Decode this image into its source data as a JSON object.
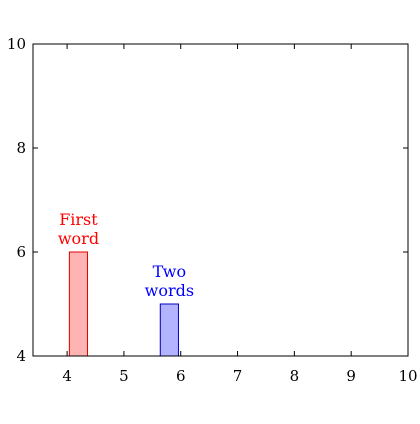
{
  "chart_data": {
    "type": "bar",
    "title": "",
    "xlabel": "",
    "ylabel": "",
    "xlim": [
      3.4,
      10
    ],
    "ylim": [
      4,
      10
    ],
    "grid": false,
    "x_ticks": [
      4,
      5,
      6,
      7,
      8,
      9,
      10
    ],
    "y_ticks": [
      4,
      6,
      8,
      10
    ],
    "series": [
      {
        "x": 4.2,
        "value": 6,
        "label_lines": [
          "First",
          "word"
        ],
        "fill": "#ffb3b3",
        "stroke": "#e00000",
        "text_color": "#ff0000"
      },
      {
        "x": 5.8,
        "value": 5,
        "label_lines": [
          "Two",
          "words"
        ],
        "fill": "#b3b3ff",
        "stroke": "#0000c0",
        "text_color": "#0000ff"
      }
    ]
  }
}
